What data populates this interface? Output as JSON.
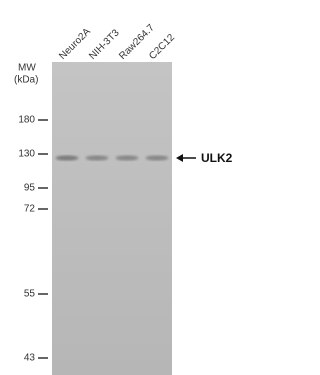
{
  "mw_header": [
    "MW",
    "(kDa)"
  ],
  "lanes": [
    "Neuro2A",
    "NIH-3T3",
    "Raw264.7",
    "C2C12"
  ],
  "markers": [
    "180",
    "130",
    "95",
    "72",
    "55",
    "43"
  ],
  "target": "ULK2"
}
